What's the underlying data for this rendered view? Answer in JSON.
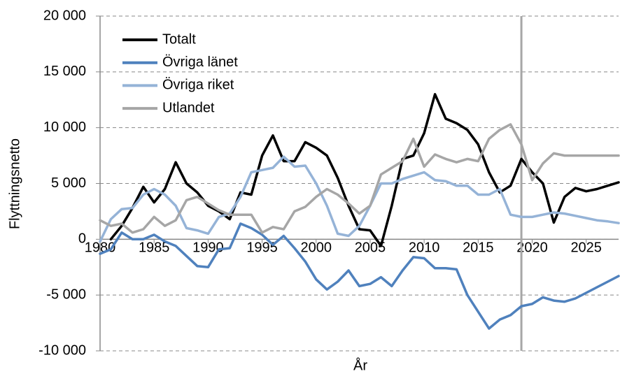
{
  "chart_data": {
    "type": "line",
    "xlabel": "År",
    "ylabel": "Flyttningsnetto",
    "x": [
      1980,
      1981,
      1982,
      1983,
      1984,
      1985,
      1986,
      1987,
      1988,
      1989,
      1990,
      1991,
      1992,
      1993,
      1994,
      1995,
      1996,
      1997,
      1998,
      1999,
      2000,
      2001,
      2002,
      2003,
      2004,
      2005,
      2006,
      2007,
      2008,
      2009,
      2010,
      2011,
      2012,
      2013,
      2014,
      2015,
      2016,
      2017,
      2018,
      2019,
      2020,
      2021,
      2022,
      2023,
      2024,
      2025,
      2026,
      2027,
      2028
    ],
    "series": [
      {
        "name": "Totalt",
        "color": "#000000",
        "values": [
          null,
          0,
          1200,
          2800,
          4700,
          3300,
          4500,
          6900,
          5000,
          4200,
          3000,
          2500,
          1800,
          4200,
          4000,
          7500,
          9300,
          7000,
          7000,
          8700,
          8200,
          7500,
          5500,
          3000,
          900,
          800,
          -600,
          3000,
          7200,
          7500,
          9500,
          13000,
          10800,
          10400,
          9800,
          8500,
          6000,
          4200,
          4800,
          7200,
          6000,
          5000,
          1500,
          3800,
          4600,
          4300,
          4500,
          4800,
          5100
        ]
      },
      {
        "name": "Övriga länet",
        "color": "#4f81bd",
        "values": [
          -1300,
          -900,
          600,
          0,
          0,
          400,
          -200,
          -600,
          -1500,
          -2400,
          -2500,
          -900,
          -800,
          1400,
          1000,
          400,
          -500,
          300,
          -800,
          -2000,
          -3600,
          -4500,
          -3800,
          -2800,
          -4200,
          -4000,
          -3400,
          -4200,
          -2800,
          -1600,
          -1700,
          -2600,
          -2600,
          -2700,
          -5000,
          -6500,
          -8000,
          -7200,
          -6800,
          -6000,
          -5800,
          -5200,
          -5500,
          -5600,
          -5300,
          -4800,
          -4300,
          -3800,
          -3300
        ]
      },
      {
        "name": "Övriga riket",
        "color": "#95b3d7",
        "values": [
          -200,
          1800,
          2700,
          2800,
          4000,
          4500,
          4000,
          3000,
          1000,
          800,
          500,
          2000,
          2300,
          3800,
          6000,
          6200,
          6400,
          7400,
          6500,
          6600,
          5000,
          3000,
          500,
          300,
          1200,
          3000,
          5000,
          5000,
          5400,
          5700,
          6000,
          5300,
          5200,
          4800,
          4800,
          4000,
          4000,
          4500,
          2200,
          2000,
          2000,
          2200,
          2400,
          2300,
          2100,
          1900,
          1700,
          1600,
          1450
        ]
      },
      {
        "name": "Utlandet",
        "color": "#a6a6a6",
        "values": [
          1700,
          1200,
          1400,
          600,
          900,
          2000,
          1200,
          1700,
          3500,
          3800,
          3200,
          2600,
          2200,
          2200,
          2200,
          600,
          1100,
          900,
          2500,
          2900,
          3800,
          4500,
          4000,
          3200,
          2300,
          3000,
          5800,
          6400,
          7000,
          9000,
          6500,
          7600,
          7200,
          6900,
          7200,
          7000,
          9000,
          9800,
          10300,
          8500,
          5300,
          6800,
          7700,
          7500,
          7500,
          7500,
          7500,
          7500,
          7500
        ]
      }
    ],
    "xlim": [
      1980,
      2028
    ],
    "xticks": [
      1980,
      1985,
      1990,
      1995,
      2000,
      2005,
      2010,
      2015,
      2020,
      2025
    ],
    "ylim": [
      -10000,
      20000
    ],
    "yticks": [
      {
        "value": -10000,
        "label": "-10 000"
      },
      {
        "value": -5000,
        "label": "-5 000"
      },
      0,
      {
        "value": 5000,
        "label": "5 000"
      },
      {
        "value": 10000,
        "label": "10 000"
      },
      {
        "value": 15000,
        "label": "15 000"
      },
      {
        "value": 20000,
        "label": "20 000"
      }
    ],
    "grid": true,
    "legend": "upper left",
    "vline": 2019
  }
}
